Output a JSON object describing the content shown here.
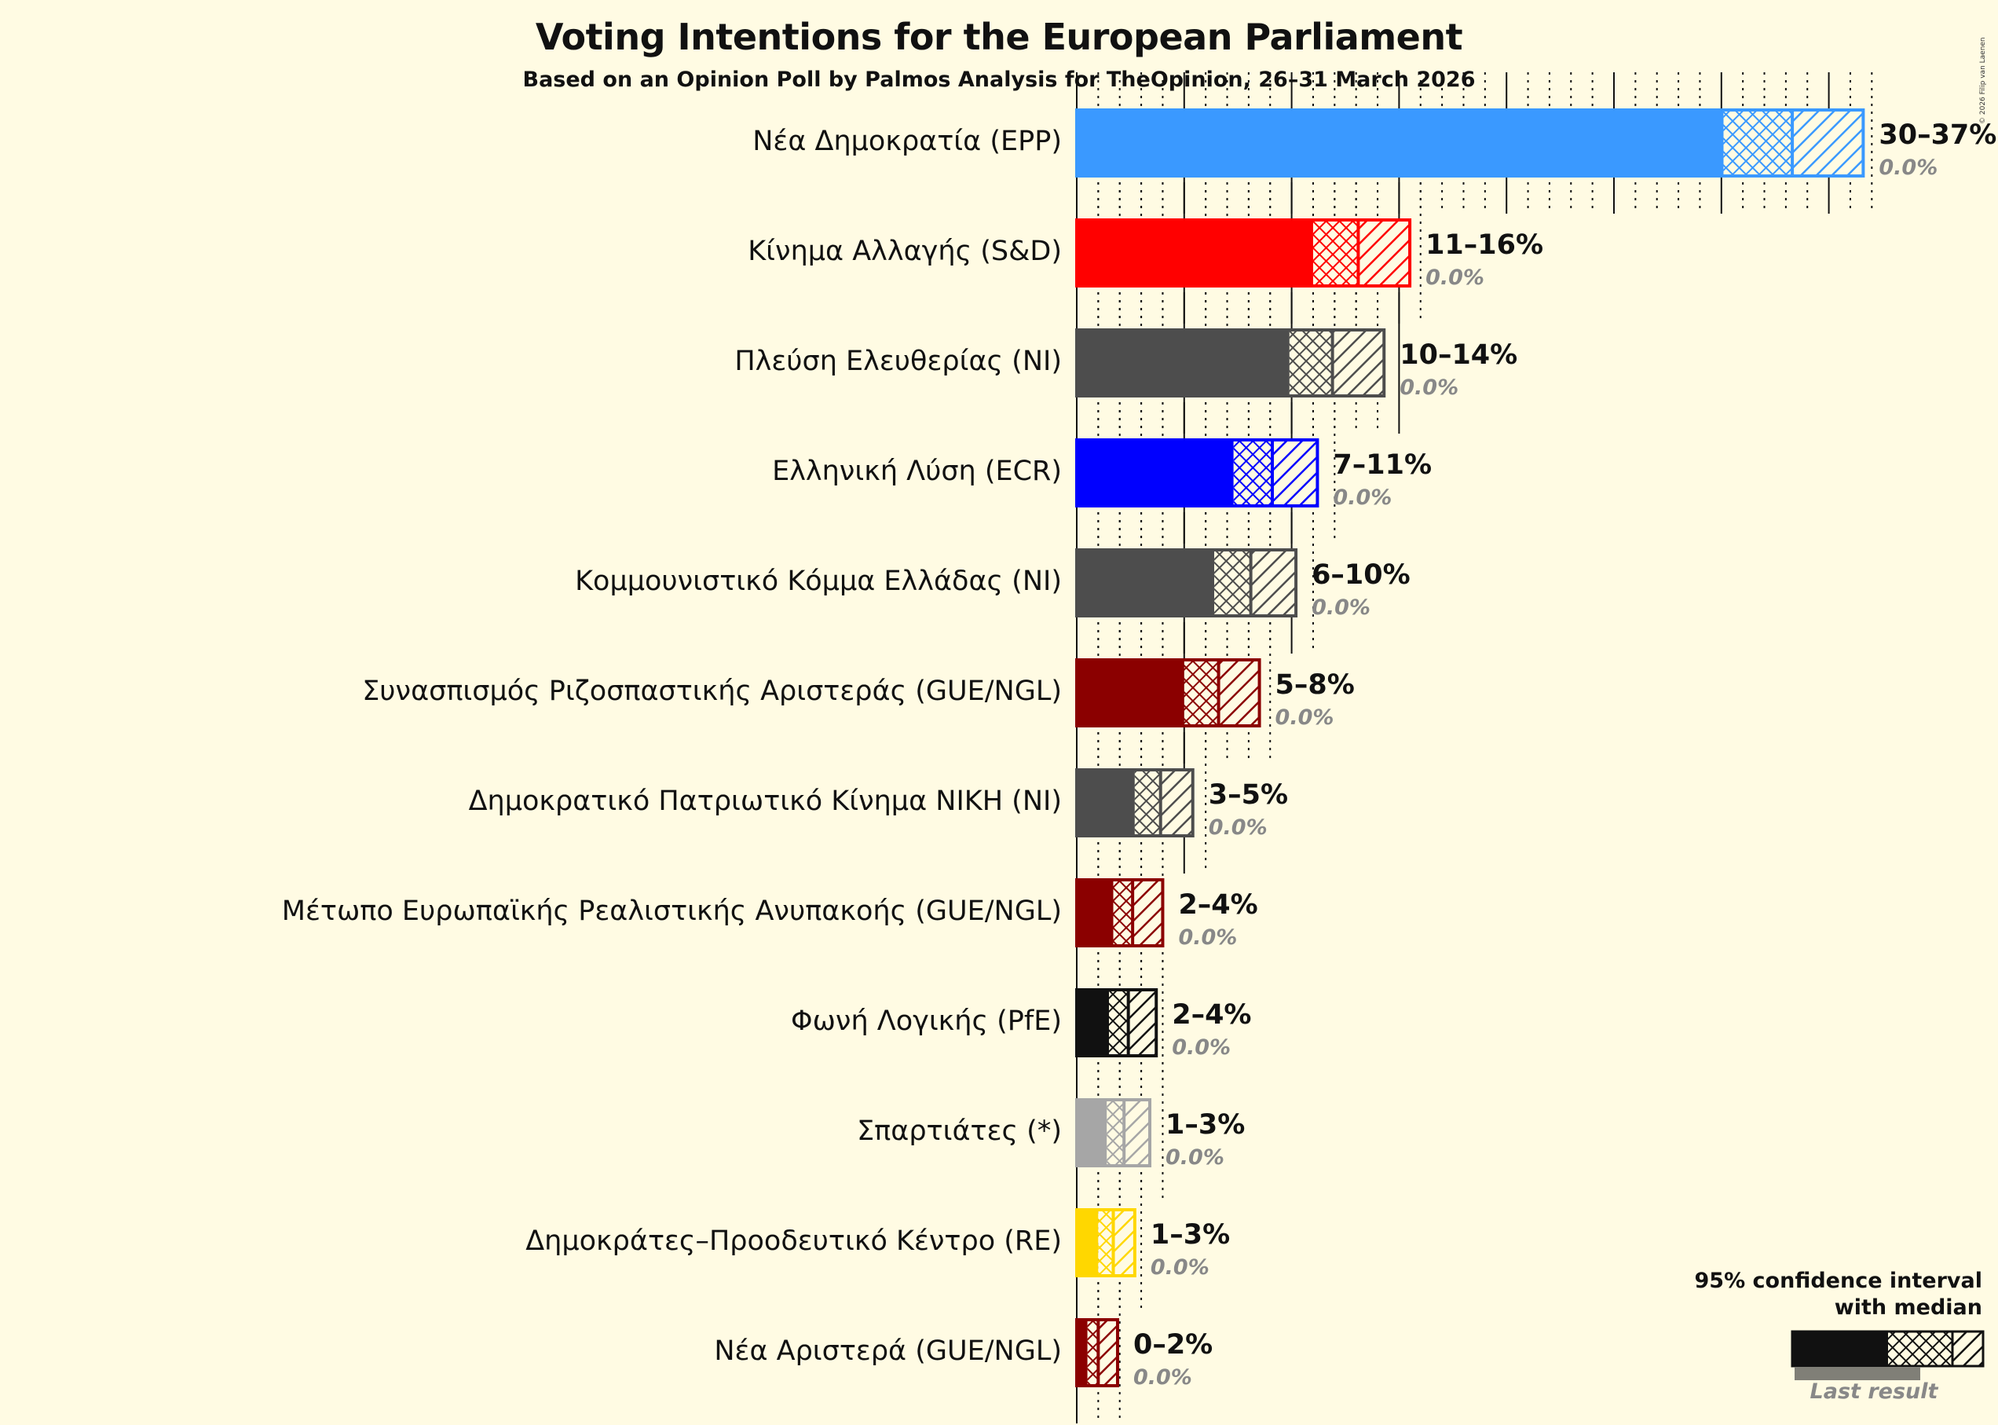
{
  "header": {
    "title": "Voting Intentions for the European Parliament",
    "subtitle": "Based on an Opinion Poll by Palmos Analysis for TheOpinion, 26–31 March 2026",
    "copyright": "© 2026 Filip van Laenen"
  },
  "legend": {
    "title_line1": "95% confidence interval",
    "title_line2": "with median",
    "last_result": "Last result"
  },
  "chart_data": {
    "type": "bar",
    "orientation": "horizontal",
    "title": "Voting Intentions for the European Parliament",
    "subtitle": "Based on an Opinion Poll by Palmos Analysis for TheOpinion, 26–31 March 2026",
    "xlabel": "",
    "ylabel": "",
    "x_unit": "%",
    "grid": {
      "major_every": 5,
      "minor_every": 1,
      "style": "major solid, minor dotted"
    },
    "legend": [
      "95% confidence interval with median",
      "Last result"
    ],
    "series_semantics": "solid = up to CI lower bound, crosshatch = lower bound to median, diagonal hatch = median to upper bound",
    "categories": [
      "Νέα Δημοκρατία (EPP)",
      "Κίνημα Αλλαγής (S&D)",
      "Πλεύση Ελευθερίας (NI)",
      "Ελληνική Λύση (ECR)",
      "Κομμουνιστικό Κόμμα Ελλάδας (NI)",
      "Συνασπισμός Ριζοσπαστικής Αριστεράς (GUE/NGL)",
      "Δημοκρατικό Πατριωτικό Κίνημα ΝΙΚΗ (NI)",
      "Μέτωπο Ευρωπαϊκής Ρεαλιστικής Ανυπακοής (GUE/NGL)",
      "Φωνή Λογικής (PfE)",
      "Σπαρτιάτες (*)",
      "Δημοκράτες–Προοδευτικό Κέντρο (RE)",
      "Νέα Αριστερά (GUE/NGL)"
    ],
    "series": [
      {
        "name": "CI low",
        "values": [
          30.1,
          11.0,
          9.9,
          7.3,
          6.4,
          5.0,
          2.7,
          1.7,
          1.5,
          1.4,
          1.0,
          0.5
        ]
      },
      {
        "name": "Median",
        "values": [
          33.3,
          13.1,
          11.9,
          9.1,
          8.1,
          6.6,
          3.9,
          2.6,
          2.4,
          2.2,
          1.7,
          1.0
        ]
      },
      {
        "name": "CI high",
        "values": [
          36.6,
          15.5,
          14.3,
          11.2,
          10.2,
          8.5,
          5.4,
          4.0,
          3.7,
          3.4,
          2.7,
          1.9
        ]
      },
      {
        "name": "Last result",
        "values": [
          0.0,
          0.0,
          0.0,
          0.0,
          0.0,
          0.0,
          0.0,
          0.0,
          0.0,
          0.0,
          0.0,
          0.0
        ]
      }
    ],
    "range_labels": [
      "30–37%",
      "11–16%",
      "10–14%",
      "7–11%",
      "6–10%",
      "5–8%",
      "3–5%",
      "2–4%",
      "2–4%",
      "1–3%",
      "1–3%",
      "0–2%"
    ],
    "last_labels": [
      "0.0%",
      "0.0%",
      "0.0%",
      "0.0%",
      "0.0%",
      "0.0%",
      "0.0%",
      "0.0%",
      "0.0%",
      "0.0%",
      "0.0%",
      "0.0%"
    ],
    "colors": [
      "#3a99ff",
      "#ff0000",
      "#4d4d4d",
      "#0000ff",
      "#4d4d4d",
      "#8b0000",
      "#4d4d4d",
      "#8b0000",
      "#111111",
      "#a6a6a6",
      "#ffd700",
      "#8b0000"
    ],
    "xlim": [
      0,
      40
    ]
  },
  "parties": [
    {
      "label": "Νέα Δημοκρατία (EPP)",
      "range": "30–37%",
      "last": "0.0%"
    },
    {
      "label": "Κίνημα Αλλαγής (S&D)",
      "range": "11–16%",
      "last": "0.0%"
    },
    {
      "label": "Πλεύση Ελευθερίας (NI)",
      "range": "10–14%",
      "last": "0.0%"
    },
    {
      "label": "Ελληνική Λύση (ECR)",
      "range": "7–11%",
      "last": "0.0%"
    },
    {
      "label": "Κομμουνιστικό Κόμμα Ελλάδας (NI)",
      "range": "6–10%",
      "last": "0.0%"
    },
    {
      "label": "Συνασπισμός Ριζοσπαστικής Αριστεράς (GUE/NGL)",
      "range": "5–8%",
      "last": "0.0%"
    },
    {
      "label": "Δημοκρατικό Πατριωτικό Κίνημα ΝΙΚΗ (NI)",
      "range": "3–5%",
      "last": "0.0%"
    },
    {
      "label": "Μέτωπο Ευρωπαϊκής Ρεαλιστικής Ανυπακοής (GUE/NGL)",
      "range": "2–4%",
      "last": "0.0%"
    },
    {
      "label": "Φωνή Λογικής (PfE)",
      "range": "2–4%",
      "last": "0.0%"
    },
    {
      "label": "Σπαρτιάτες (*)",
      "range": "1–3%",
      "last": "0.0%"
    },
    {
      "label": "Δημοκράτες–Προοδευτικό Κέντρο (RE)",
      "range": "1–3%",
      "last": "0.0%"
    },
    {
      "label": "Νέα Αριστερά (GUE/NGL)",
      "range": "0–2%",
      "last": "0.0%"
    }
  ]
}
